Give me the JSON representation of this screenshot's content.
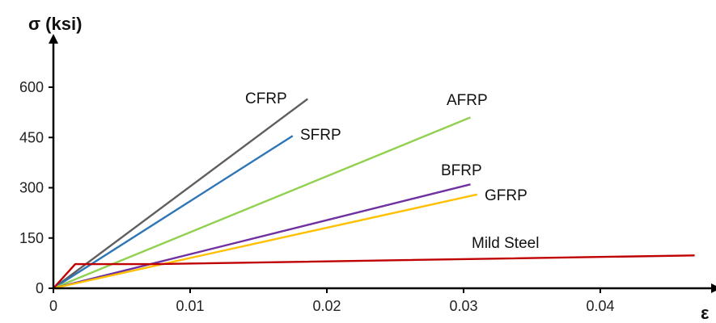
{
  "chart_data": {
    "type": "line",
    "ylabel": "σ (ksi)",
    "xlabel": "ε",
    "xlim": [
      0,
      0.05
    ],
    "ylim": [
      0,
      600
    ],
    "x_ticks": [
      {
        "value": 0,
        "label": "0"
      },
      {
        "value": 0.01,
        "label": "0.01"
      },
      {
        "value": 0.02,
        "label": "0.02"
      },
      {
        "value": 0.03,
        "label": "0.03"
      },
      {
        "value": 0.04,
        "label": "0.04"
      }
    ],
    "y_ticks": [
      {
        "value": 0,
        "label": "0"
      },
      {
        "value": 150,
        "label": "150"
      },
      {
        "value": 300,
        "label": "300"
      },
      {
        "value": 450,
        "label": "450"
      },
      {
        "value": 600,
        "label": "600"
      }
    ],
    "grid": false,
    "legend": "none",
    "series": [
      {
        "name": "CFRP",
        "color": "#5f5f5f",
        "points": [
          [
            0,
            0
          ],
          [
            0.0186,
            565
          ]
        ]
      },
      {
        "name": "SFRP",
        "color": "#2e75b6",
        "points": [
          [
            0,
            0
          ],
          [
            0.0175,
            455
          ]
        ]
      },
      {
        "name": "AFRP",
        "color": "#92d050",
        "points": [
          [
            0,
            0
          ],
          [
            0.0305,
            510
          ]
        ]
      },
      {
        "name": "BFRP",
        "color": "#7030a0",
        "points": [
          [
            0,
            0
          ],
          [
            0.0305,
            310
          ]
        ]
      },
      {
        "name": "GFRP",
        "color": "#ffc000",
        "points": [
          [
            0,
            0
          ],
          [
            0.031,
            280
          ]
        ]
      },
      {
        "name": "Mild Steel",
        "color": "#c00000",
        "points": [
          [
            0,
            0
          ],
          [
            0.0016,
            72
          ],
          [
            0.0075,
            72
          ],
          [
            0.0469,
            98
          ]
        ]
      }
    ]
  }
}
